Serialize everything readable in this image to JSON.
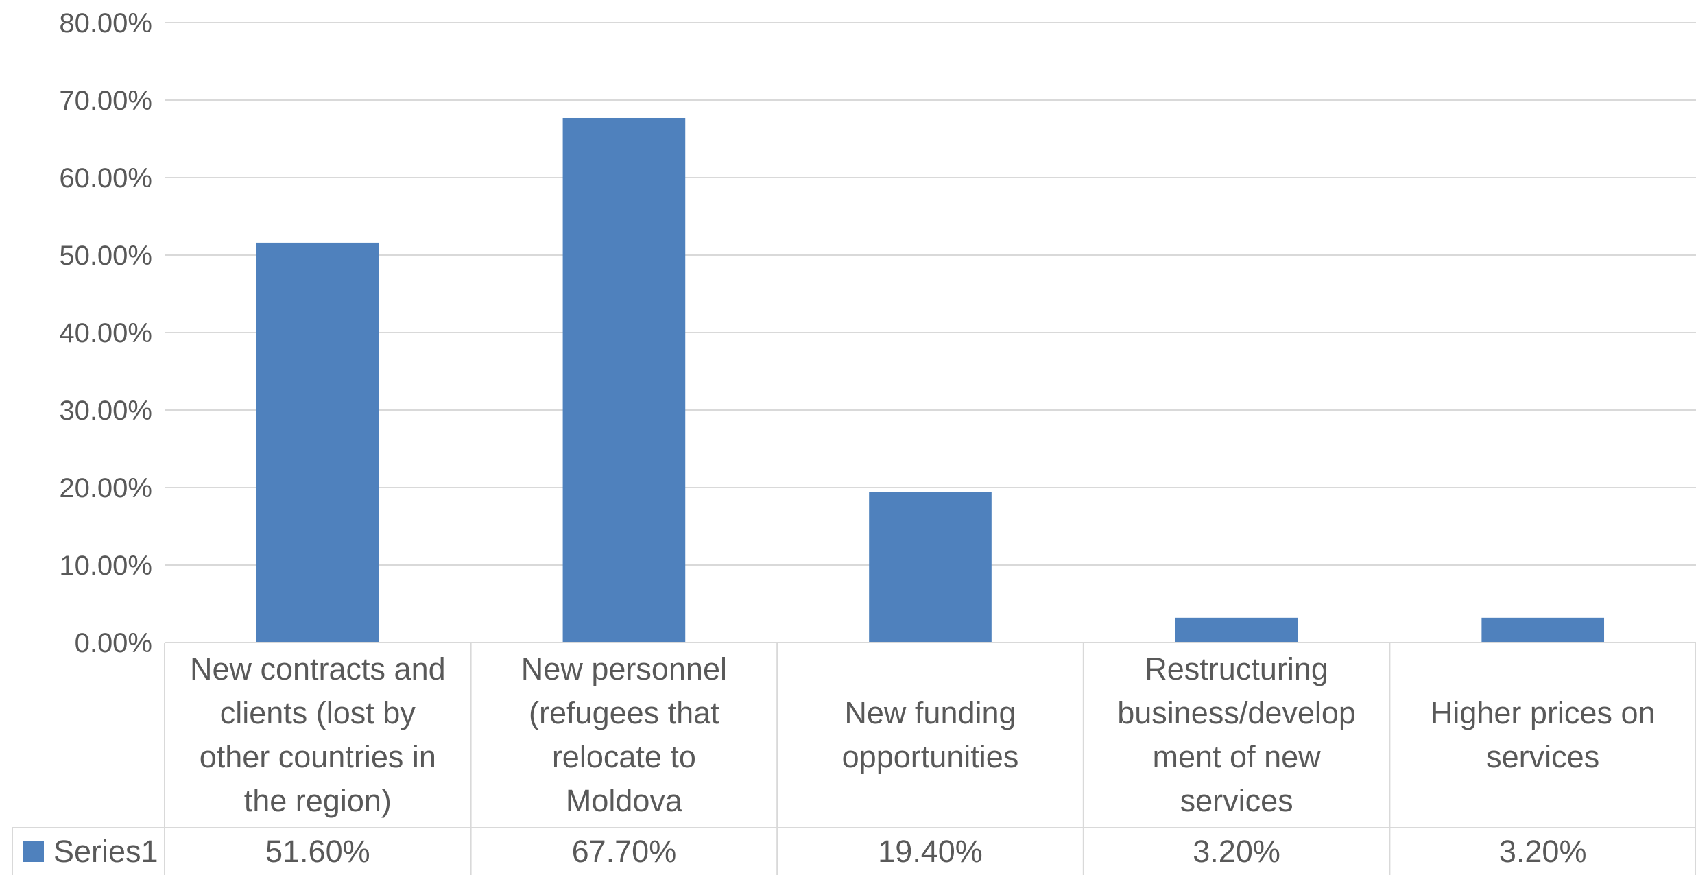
{
  "chart_data": {
    "type": "bar",
    "categories": [
      "New contracts and clients (lost by other countries in the region)",
      "New personnel (refugees that relocate to Moldova",
      "New funding opportunities",
      "Restructuring business/development of new services",
      "Higher prices on services"
    ],
    "category_lines": [
      [
        "New contracts and",
        "clients (lost by",
        "other countries in",
        "the region)"
      ],
      [
        "New personnel",
        "(refugees that",
        "relocate to",
        "Moldova"
      ],
      [
        "New funding",
        "opportunities"
      ],
      [
        "Restructuring",
        "business/develop",
        "ment of new",
        "services"
      ],
      [
        "Higher prices on",
        "services"
      ]
    ],
    "series": [
      {
        "name": "Series1",
        "values": [
          51.6,
          67.7,
          19.4,
          3.2,
          3.2
        ],
        "labels": [
          "51.60%",
          "67.70%",
          "19.40%",
          "3.20%",
          "3.20%"
        ],
        "color": "#4f81bd"
      }
    ],
    "yticks": [
      "0.00%",
      "10.00%",
      "20.00%",
      "30.00%",
      "40.00%",
      "50.00%",
      "60.00%",
      "70.00%",
      "80.00%"
    ],
    "ylim": [
      0,
      80
    ],
    "grid": true,
    "legend": "data-table",
    "data_table": true
  }
}
